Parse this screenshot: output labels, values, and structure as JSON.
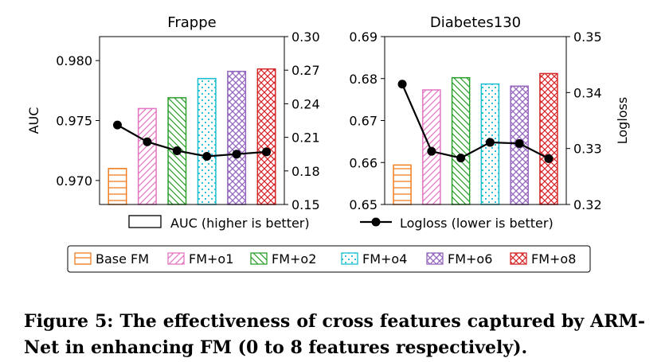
{
  "chart_data": [
    {
      "type": "bar",
      "title": "Frappe",
      "categories": [
        "Base FM",
        "FM+o1",
        "FM+o2",
        "FM+o4",
        "FM+o6",
        "FM+o8"
      ],
      "bar_metric": "AUC",
      "line_metric": "Logloss",
      "auc": [
        0.971,
        0.976,
        0.9769,
        0.9785,
        0.9791,
        0.9793
      ],
      "logloss": [
        0.221,
        0.206,
        0.198,
        0.193,
        0.195,
        0.197
      ],
      "ylabel_left": "AUC",
      "ylabel_right": "",
      "ylim_left": [
        0.968,
        0.982
      ],
      "ylim_right": [
        0.15,
        0.3
      ],
      "yticks_left": [
        "0.970",
        "0.975",
        "0.980"
      ],
      "yticks_right": [
        "0.15",
        "0.18",
        "0.21",
        "0.24",
        "0.27",
        "0.30"
      ],
      "grid": false
    },
    {
      "type": "bar",
      "title": "Diabetes130",
      "categories": [
        "Base FM",
        "FM+o1",
        "FM+o2",
        "FM+o4",
        "FM+o6",
        "FM+o8"
      ],
      "bar_metric": "AUC",
      "line_metric": "Logloss",
      "auc": [
        0.6594,
        0.6773,
        0.6802,
        0.6787,
        0.6782,
        0.6812
      ],
      "logloss": [
        0.3415,
        0.3295,
        0.3283,
        0.3311,
        0.3309,
        0.3282
      ],
      "ylabel_left": "",
      "ylabel_right": "Logloss",
      "ylim_left": [
        0.65,
        0.69
      ],
      "ylim_right": [
        0.32,
        0.35
      ],
      "yticks_left": [
        "0.65",
        "0.66",
        "0.67",
        "0.68",
        "0.69"
      ],
      "yticks_right": [
        "0.32",
        "0.33",
        "0.34",
        "0.35"
      ],
      "grid": false
    }
  ],
  "legend_top": {
    "auc_label": "AUC (higher is better)",
    "logloss_label": "Logloss (lower is better)"
  },
  "legend_bottom": [
    "Base FM",
    "FM+o1",
    "FM+o2",
    "FM+o4",
    "FM+o6",
    "FM+o8"
  ],
  "colors": {
    "base": "#f07f22",
    "o1": "#e376c2",
    "o2": "#2ca02c",
    "o4": "#17becf",
    "o6": "#9467bd",
    "o8": "#d62728",
    "line": "#000000"
  },
  "caption": "Figure 5: The effectiveness of cross features captured by ARM-Net in enhancing FM (0 to 8 features respectively)."
}
